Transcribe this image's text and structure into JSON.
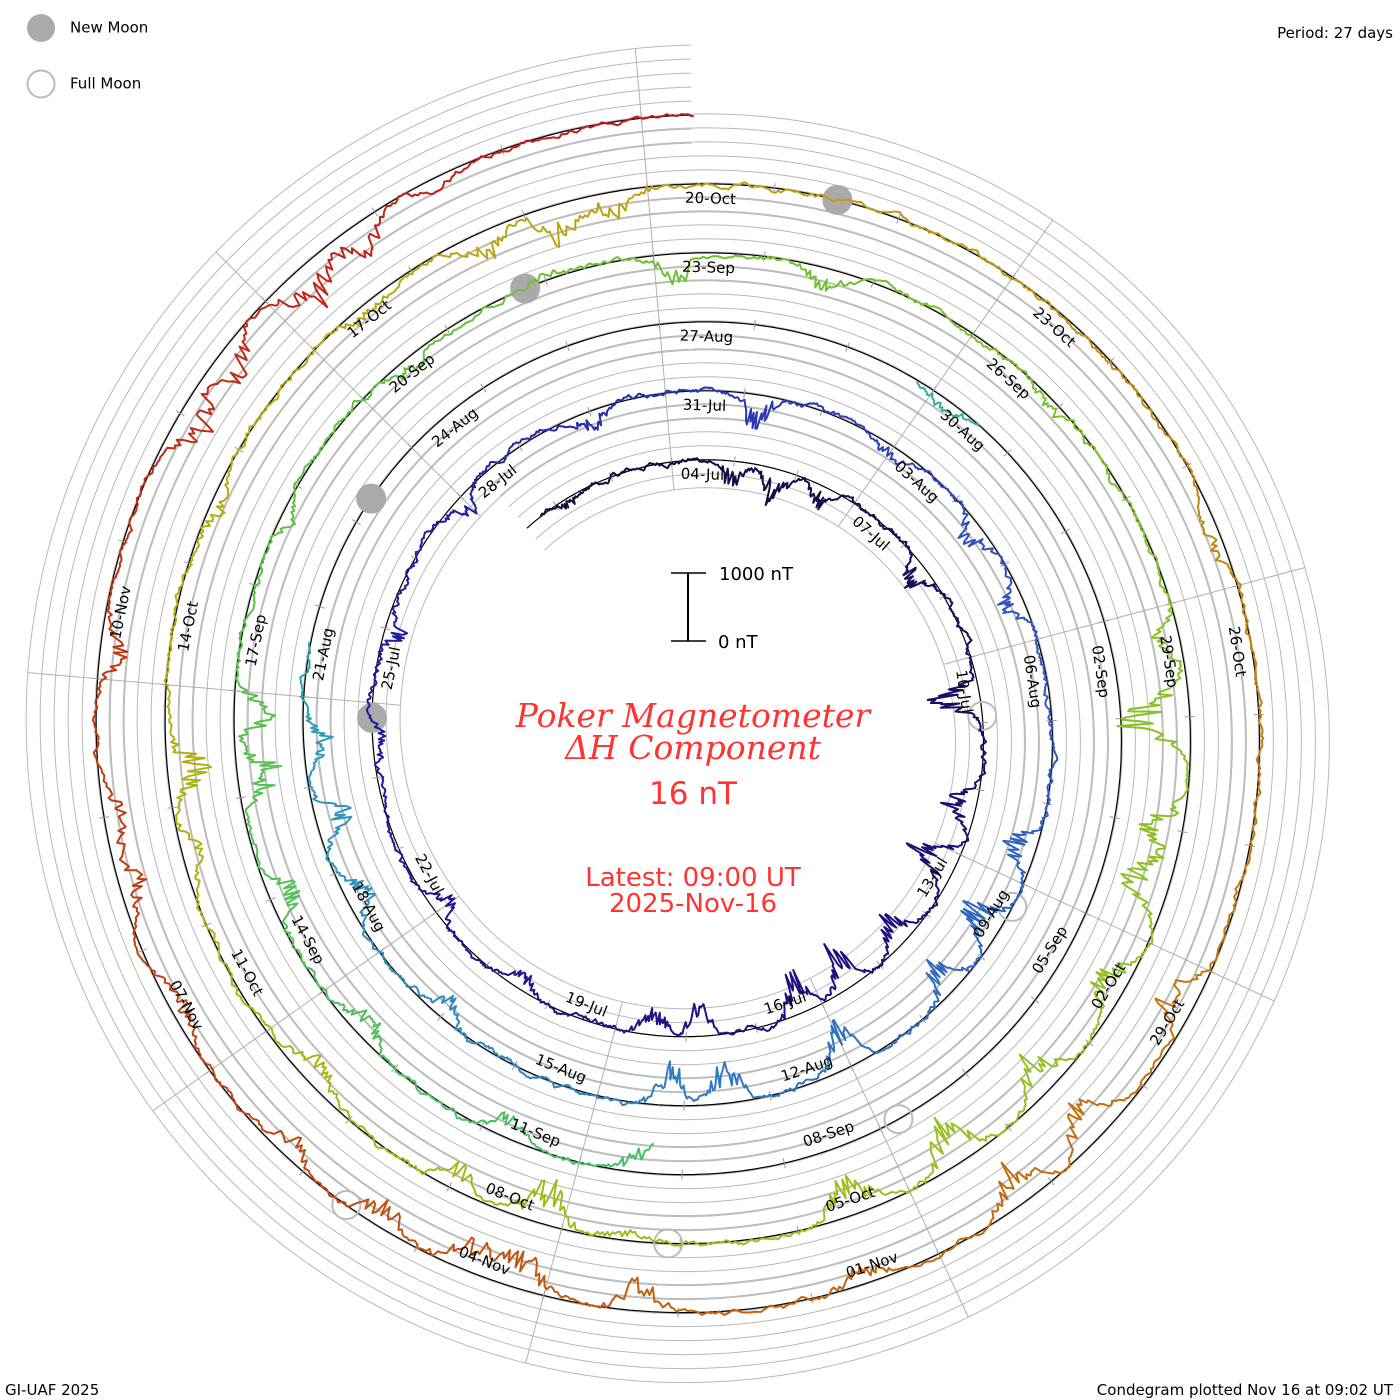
{
  "legend": {
    "new_moon": "New Moon",
    "full_moon": "Full Moon",
    "new_moon_color": "#aaaaaa",
    "full_moon_color": "#bbbbbb"
  },
  "period_label": "Period: 27 days",
  "footer": {
    "left": "GI-UAF 2025",
    "right": "Condegram plotted Nov 16 at 09:02 UT"
  },
  "scale_bar": {
    "top_label": "1000 nT",
    "bottom_label": "0 nT"
  },
  "center": {
    "title_line1": "Poker Magnetometer",
    "title_line2": "ΔH Component",
    "current_value": "16 nT",
    "latest_line1": "Latest: 09:00 UT",
    "latest_line2": "2025-Nov-16"
  },
  "chart_data": {
    "type": "line",
    "subtype": "spiral condegram",
    "title": "Poker Magnetometer ΔH Component",
    "units": "nT",
    "period_days": 27,
    "start": [
      "Jul",
      1.7
    ],
    "end": [
      "Nov",
      16.375
    ],
    "scale_nT": 1000,
    "gaps": [
      [
        [
          "Aug",
          21.6
        ],
        [
          "Aug",
          29.8
        ]
      ],
      [
        [
          "Aug",
          30.6
        ],
        [
          "Sep",
          10.3
        ]
      ]
    ],
    "date_labels": [
      [
        "Jul",
        4,
        "04-Jul"
      ],
      [
        "Jul",
        7,
        "07-Jul"
      ],
      [
        "Jul",
        10,
        "10-Jul"
      ],
      [
        "Jul",
        13,
        "13-Jul"
      ],
      [
        "Jul",
        16,
        "16-Jul"
      ],
      [
        "Jul",
        19,
        "19-Jul"
      ],
      [
        "Jul",
        22,
        "22-Jul"
      ],
      [
        "Jul",
        25,
        "25-Jul"
      ],
      [
        "Jul",
        28,
        "28-Jul"
      ],
      [
        "Jul",
        31,
        "31-Jul"
      ],
      [
        "Aug",
        3,
        "03-Aug"
      ],
      [
        "Aug",
        6,
        "06-Aug"
      ],
      [
        "Aug",
        9,
        "09-Aug"
      ],
      [
        "Aug",
        12,
        "12-Aug"
      ],
      [
        "Aug",
        15,
        "15-Aug"
      ],
      [
        "Aug",
        18,
        "18-Aug"
      ],
      [
        "Aug",
        21,
        "21-Aug"
      ],
      [
        "Aug",
        24,
        "24-Aug"
      ],
      [
        "Aug",
        27,
        "27-Aug"
      ],
      [
        "Aug",
        30,
        "30-Aug"
      ],
      [
        "Sep",
        2,
        "02-Sep"
      ],
      [
        "Sep",
        5,
        "05-Sep"
      ],
      [
        "Sep",
        8,
        "08-Sep"
      ],
      [
        "Sep",
        11,
        "11-Sep"
      ],
      [
        "Sep",
        14,
        "14-Sep"
      ],
      [
        "Sep",
        17,
        "17-Sep"
      ],
      [
        "Sep",
        20,
        "20-Sep"
      ],
      [
        "Sep",
        23,
        "23-Sep"
      ],
      [
        "Sep",
        26,
        "26-Sep"
      ],
      [
        "Sep",
        29,
        "29-Sep"
      ],
      [
        "Oct",
        2,
        "02-Oct"
      ],
      [
        "Oct",
        5,
        "05-Oct"
      ],
      [
        "Oct",
        8,
        "08-Oct"
      ],
      [
        "Oct",
        11,
        "11-Oct"
      ],
      [
        "Oct",
        14,
        "14-Oct"
      ],
      [
        "Oct",
        17,
        "17-Oct"
      ],
      [
        "Oct",
        20,
        "20-Oct"
      ],
      [
        "Oct",
        23,
        "23-Oct"
      ],
      [
        "Oct",
        26,
        "26-Oct"
      ],
      [
        "Oct",
        29,
        "29-Oct"
      ],
      [
        "Nov",
        1,
        "01-Nov"
      ],
      [
        "Nov",
        4,
        "04-Nov"
      ],
      [
        "Nov",
        7,
        "07-Nov"
      ],
      [
        "Nov",
        10,
        "10-Nov"
      ]
    ],
    "new_moons": [
      [
        "Jul",
        24.8
      ],
      [
        "Aug",
        23.3
      ],
      [
        "Sep",
        21.8
      ],
      [
        "Oct",
        21.5
      ]
    ],
    "full_moons": [
      [
        "Jul",
        10.9
      ],
      [
        "Aug",
        9.3
      ],
      [
        "Sep",
        7.8
      ],
      [
        "Oct",
        7.1
      ],
      [
        "Nov",
        5.6
      ]
    ],
    "disturbances_nT": [
      [
        "Jul",
        2.2,
        -150
      ],
      [
        "Jul",
        5.0,
        -400
      ],
      [
        "Jul",
        5.7,
        -500
      ],
      [
        "Jul",
        6.5,
        -300
      ],
      [
        "Jul",
        8.5,
        -400
      ],
      [
        "Jul",
        10.6,
        -700
      ],
      [
        "Jul",
        12.3,
        -500
      ],
      [
        "Jul",
        13.2,
        -700
      ],
      [
        "Jul",
        14.5,
        -450
      ],
      [
        "Jul",
        15.5,
        -600
      ],
      [
        "Jul",
        16.3,
        -700
      ],
      [
        "Jul",
        17.8,
        -400
      ],
      [
        "Jul",
        18.5,
        -350
      ],
      [
        "Jul",
        20.5,
        -250
      ],
      [
        "Jul",
        22.0,
        -300
      ],
      [
        "Jul",
        24.5,
        -250
      ],
      [
        "Jul",
        26.0,
        -300
      ],
      [
        "Jul",
        28.0,
        -300
      ],
      [
        "Jul",
        30.0,
        -250
      ],
      [
        "Aug",
        1.2,
        -450
      ],
      [
        "Aug",
        3.0,
        -200
      ],
      [
        "Aug",
        4.5,
        -350
      ],
      [
        "Aug",
        5.5,
        -300
      ],
      [
        "Aug",
        8.6,
        -500
      ],
      [
        "Aug",
        9.6,
        -600
      ],
      [
        "Aug",
        10.5,
        -500
      ],
      [
        "Aug",
        12.0,
        -600
      ],
      [
        "Aug",
        13.5,
        -550
      ],
      [
        "Aug",
        14.2,
        -500
      ],
      [
        "Aug",
        17.0,
        -250
      ],
      [
        "Aug",
        18.7,
        -350
      ],
      [
        "Aug",
        19.6,
        -500
      ],
      [
        "Aug",
        20.5,
        -350
      ],
      [
        "Aug",
        30.2,
        -150
      ],
      [
        "Sep",
        10.4,
        -400
      ],
      [
        "Sep",
        11.8,
        -300
      ],
      [
        "Sep",
        13.5,
        -350
      ],
      [
        "Sep",
        15.0,
        -400
      ],
      [
        "Sep",
        16.2,
        -600
      ],
      [
        "Sep",
        16.8,
        -550
      ],
      [
        "Sep",
        18.7,
        -150
      ],
      [
        "Sep",
        20.5,
        -200
      ],
      [
        "Sep",
        22.0,
        100
      ],
      [
        "Sep",
        23.2,
        -400
      ],
      [
        "Sep",
        24.6,
        -300
      ],
      [
        "Sep",
        27.0,
        -200
      ],
      [
        "Sep",
        29.3,
        -300
      ],
      [
        "Sep",
        30.0,
        -1000
      ],
      [
        "Oct",
        1.0,
        -550
      ],
      [
        "Oct",
        1.5,
        -650
      ],
      [
        "Oct",
        2.5,
        -500
      ],
      [
        "Oct",
        3.5,
        -500
      ],
      [
        "Oct",
        4.5,
        -600
      ],
      [
        "Oct",
        5.5,
        -600
      ],
      [
        "Oct",
        7.5,
        -150
      ],
      [
        "Oct",
        8.2,
        -550
      ],
      [
        "Oct",
        9.0,
        -300
      ],
      [
        "Oct",
        10.5,
        -300
      ],
      [
        "Oct",
        12.6,
        -300
      ],
      [
        "Oct",
        13.3,
        -550
      ],
      [
        "Oct",
        15.5,
        -250
      ],
      [
        "Oct",
        17.5,
        -200
      ],
      [
        "Oct",
        18.6,
        -350
      ],
      [
        "Oct",
        19.2,
        -500
      ],
      [
        "Oct",
        19.7,
        -350
      ],
      [
        "Oct",
        25.6,
        -200
      ],
      [
        "Oct",
        29.3,
        -500
      ],
      [
        "Oct",
        30.5,
        -500
      ],
      [
        "Oct",
        31.2,
        -550
      ],
      [
        "Nov",
        1.6,
        -250
      ],
      [
        "Nov",
        3.3,
        -400
      ],
      [
        "Nov",
        4.2,
        -500
      ],
      [
        "Nov",
        4.6,
        -400
      ],
      [
        "Nov",
        5.3,
        -400
      ],
      [
        "Nov",
        6.2,
        -300
      ],
      [
        "Nov",
        7.5,
        -250
      ],
      [
        "Nov",
        8.5,
        -300
      ],
      [
        "Nov",
        9.0,
        -300
      ],
      [
        "Nov",
        10.2,
        -300
      ],
      [
        "Nov",
        12.0,
        -500
      ],
      [
        "Nov",
        12.5,
        -450
      ],
      [
        "Nov",
        13.3,
        -600
      ],
      [
        "Nov",
        13.8,
        -400
      ],
      [
        "Nov",
        14.5,
        -150
      ]
    ],
    "color_stops": [
      [
        [
          "Jul",
          1
        ],
        "#140a30"
      ],
      [
        [
          "Jul",
          16
        ],
        "#1e1080"
      ],
      [
        [
          "Jul",
          28
        ],
        "#2020a0"
      ],
      [
        [
          "Aug",
          5
        ],
        "#3050c0"
      ],
      [
        [
          "Aug",
          15
        ],
        "#3080c0"
      ],
      [
        [
          "Aug",
          22
        ],
        "#30a0b8"
      ],
      [
        [
          "Sep",
          9
        ],
        "#40c070"
      ],
      [
        [
          "Sep",
          24
        ],
        "#70c030"
      ],
      [
        [
          "Oct",
          4
        ],
        "#98c020"
      ],
      [
        [
          "Oct",
          14
        ],
        "#b0b010"
      ],
      [
        [
          "Oct",
          21
        ],
        "#c0a010"
      ],
      [
        [
          "Oct",
          27
        ],
        "#c08010"
      ],
      [
        [
          "Nov",
          3
        ],
        "#c06010"
      ],
      [
        [
          "Nov",
          8
        ],
        "#c04010"
      ],
      [
        [
          "Nov",
          16
        ],
        "#c01818"
      ]
    ]
  }
}
